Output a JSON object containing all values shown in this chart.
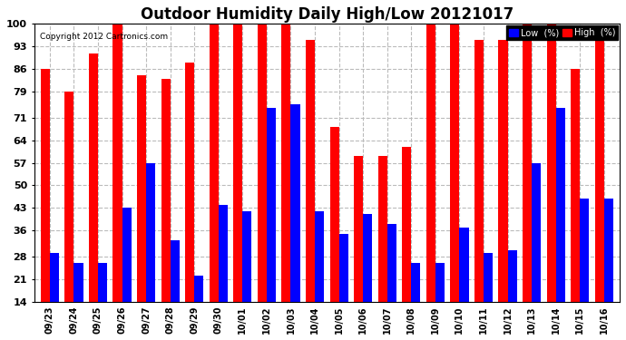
{
  "title": "Outdoor Humidity Daily High/Low 20121017",
  "copyright": "Copyright 2012 Cartronics.com",
  "legend_low_label": "Low  (%)",
  "legend_high_label": "High  (%)",
  "categories": [
    "09/23",
    "09/24",
    "09/25",
    "09/26",
    "09/27",
    "09/28",
    "09/29",
    "09/30",
    "10/01",
    "10/02",
    "10/03",
    "10/04",
    "10/05",
    "10/06",
    "10/07",
    "10/08",
    "10/09",
    "10/10",
    "10/11",
    "10/12",
    "10/13",
    "10/14",
    "10/15",
    "10/16"
  ],
  "high_values": [
    86,
    79,
    91,
    100,
    84,
    83,
    88,
    100,
    100,
    100,
    100,
    95,
    68,
    59,
    59,
    62,
    100,
    100,
    95,
    95,
    100,
    100,
    86,
    95
  ],
  "low_values": [
    29,
    26,
    26,
    43,
    57,
    33,
    22,
    44,
    42,
    74,
    75,
    42,
    35,
    41,
    38,
    26,
    26,
    37,
    29,
    30,
    57,
    74,
    46,
    46
  ],
  "high_color": "#FF0000",
  "low_color": "#0000FF",
  "background_color": "#FFFFFF",
  "plot_bg_color": "#FFFFFF",
  "grid_color": "#BBBBBB",
  "ylim": [
    14,
    100
  ],
  "yticks": [
    14,
    21,
    28,
    36,
    43,
    50,
    57,
    64,
    71,
    79,
    86,
    93,
    100
  ],
  "title_fontsize": 12,
  "bar_width": 0.38,
  "legend_low_bg": "#0000FF",
  "legend_high_bg": "#FF0000",
  "legend_text_color": "#FFFFFF"
}
